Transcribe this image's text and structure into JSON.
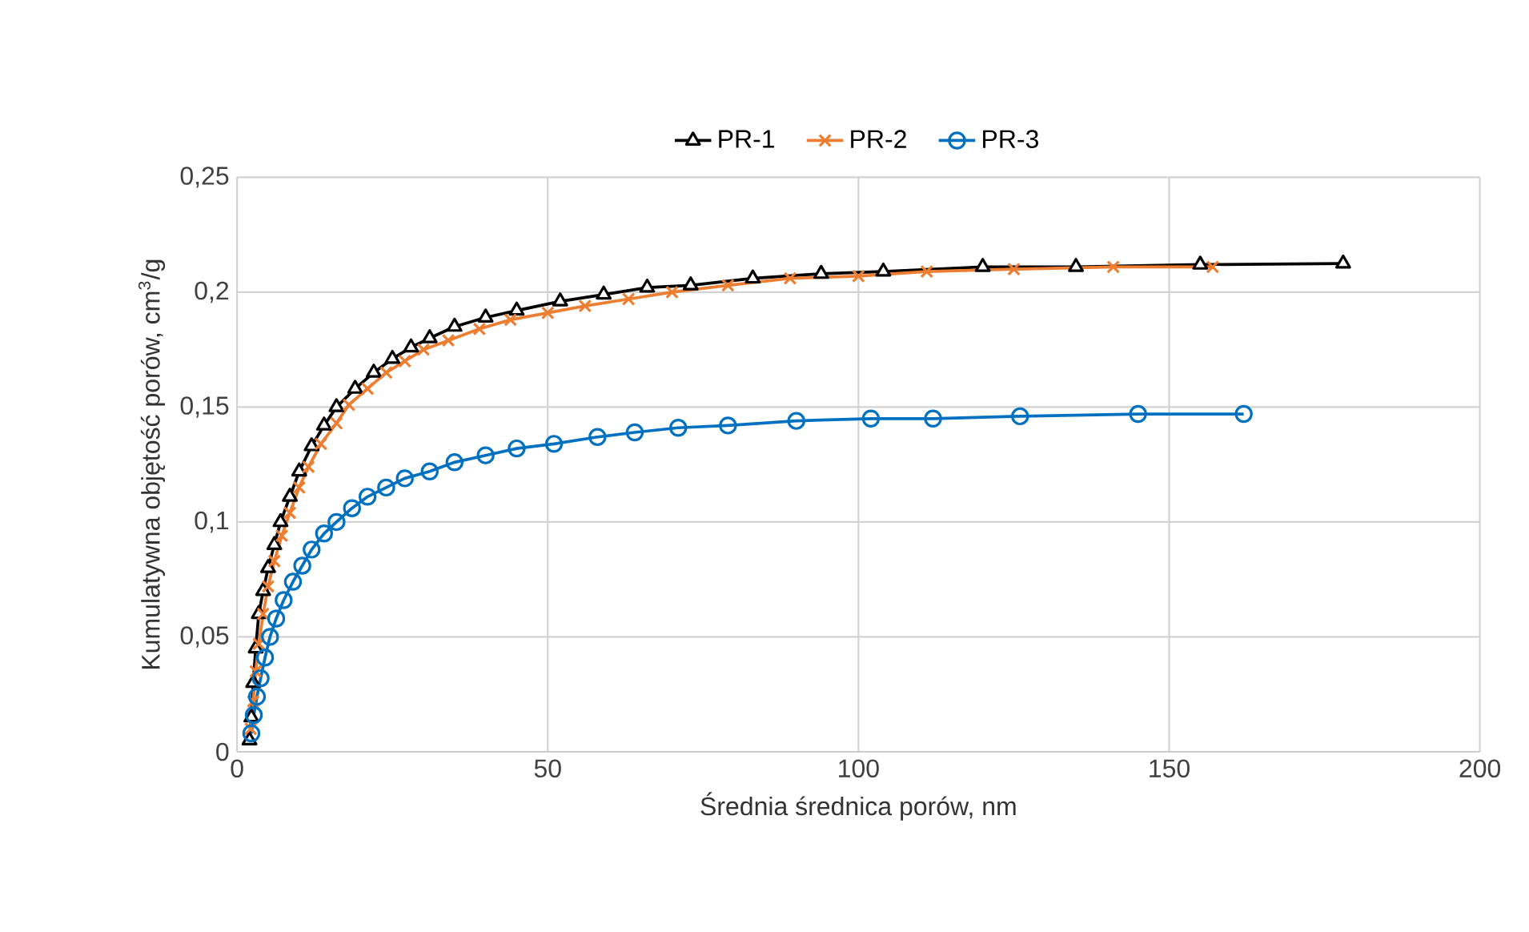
{
  "chart_data": {
    "type": "line",
    "xlabel": "Średnia średnica porów, nm",
    "ylabel": "Kumulatywna objętość porów, cm$^{3}$/g",
    "xlim": [
      0,
      200
    ],
    "xticks": [
      0,
      50,
      100,
      150,
      200
    ],
    "ylim": [
      0,
      0.25
    ],
    "yticks": [
      0,
      {
        "value": 0.05,
        "label": "0,05"
      },
      {
        "value": 0.1,
        "label": "0,1"
      },
      {
        "value": 0.15,
        "label": "0,15"
      },
      {
        "value": 0.2,
        "label": "0,2"
      },
      {
        "value": 0.25,
        "label": "0,25"
      }
    ],
    "grid": true,
    "legend": "top",
    "series": [
      {
        "name": "PR-1",
        "color": "#000000",
        "marker": "triangle",
        "x": [
          2,
          2.3,
          2.6,
          3,
          3.5,
          4.2,
          5,
          6,
          7,
          8.5,
          10,
          12,
          14,
          16,
          19,
          22,
          25,
          28,
          31,
          35,
          40,
          45,
          52,
          59,
          66,
          73,
          83,
          94,
          104,
          120,
          135,
          155,
          178
        ],
        "values": [
          0.005,
          0.015,
          0.03,
          0.045,
          0.06,
          0.07,
          0.08,
          0.09,
          0.1,
          0.111,
          0.122,
          0.133,
          0.142,
          0.15,
          0.158,
          0.165,
          0.171,
          0.176,
          0.18,
          0.185,
          0.189,
          0.192,
          0.196,
          0.199,
          0.202,
          0.203,
          0.206,
          0.208,
          0.209,
          0.211,
          0.211,
          0.212,
          0.2125
        ]
      },
      {
        "name": "PR-2",
        "color": "#ed7d31",
        "marker": "cross",
        "x": [
          2.2,
          2.6,
          3,
          3.5,
          4.2,
          5,
          6,
          7.2,
          8.5,
          10,
          11.5,
          13.5,
          16,
          18,
          21,
          24,
          27,
          30,
          34,
          39,
          44,
          50,
          56,
          63,
          70,
          79,
          89,
          100,
          111,
          125,
          141,
          157
        ],
        "values": [
          0.01,
          0.022,
          0.035,
          0.047,
          0.06,
          0.072,
          0.083,
          0.094,
          0.104,
          0.115,
          0.124,
          0.134,
          0.143,
          0.151,
          0.158,
          0.165,
          0.17,
          0.175,
          0.179,
          0.184,
          0.188,
          0.191,
          0.194,
          0.197,
          0.2,
          0.203,
          0.206,
          0.207,
          0.209,
          0.21,
          0.211,
          0.211
        ]
      },
      {
        "name": "PR-3",
        "color": "#0070c0",
        "marker": "circle",
        "x": [
          2.3,
          2.7,
          3.2,
          3.8,
          4.5,
          5.3,
          6.3,
          7.5,
          9,
          10.5,
          12,
          14,
          16,
          18.5,
          21,
          24,
          27,
          31,
          35,
          40,
          45,
          51,
          58,
          64,
          71,
          79,
          90,
          102,
          112,
          126,
          145,
          162
        ],
        "values": [
          0.008,
          0.016,
          0.024,
          0.032,
          0.041,
          0.05,
          0.058,
          0.066,
          0.074,
          0.081,
          0.088,
          0.095,
          0.1,
          0.106,
          0.111,
          0.115,
          0.119,
          0.122,
          0.126,
          0.129,
          0.132,
          0.134,
          0.137,
          0.139,
          0.141,
          0.142,
          0.144,
          0.145,
          0.145,
          0.146,
          0.147,
          0.147
        ]
      }
    ]
  }
}
